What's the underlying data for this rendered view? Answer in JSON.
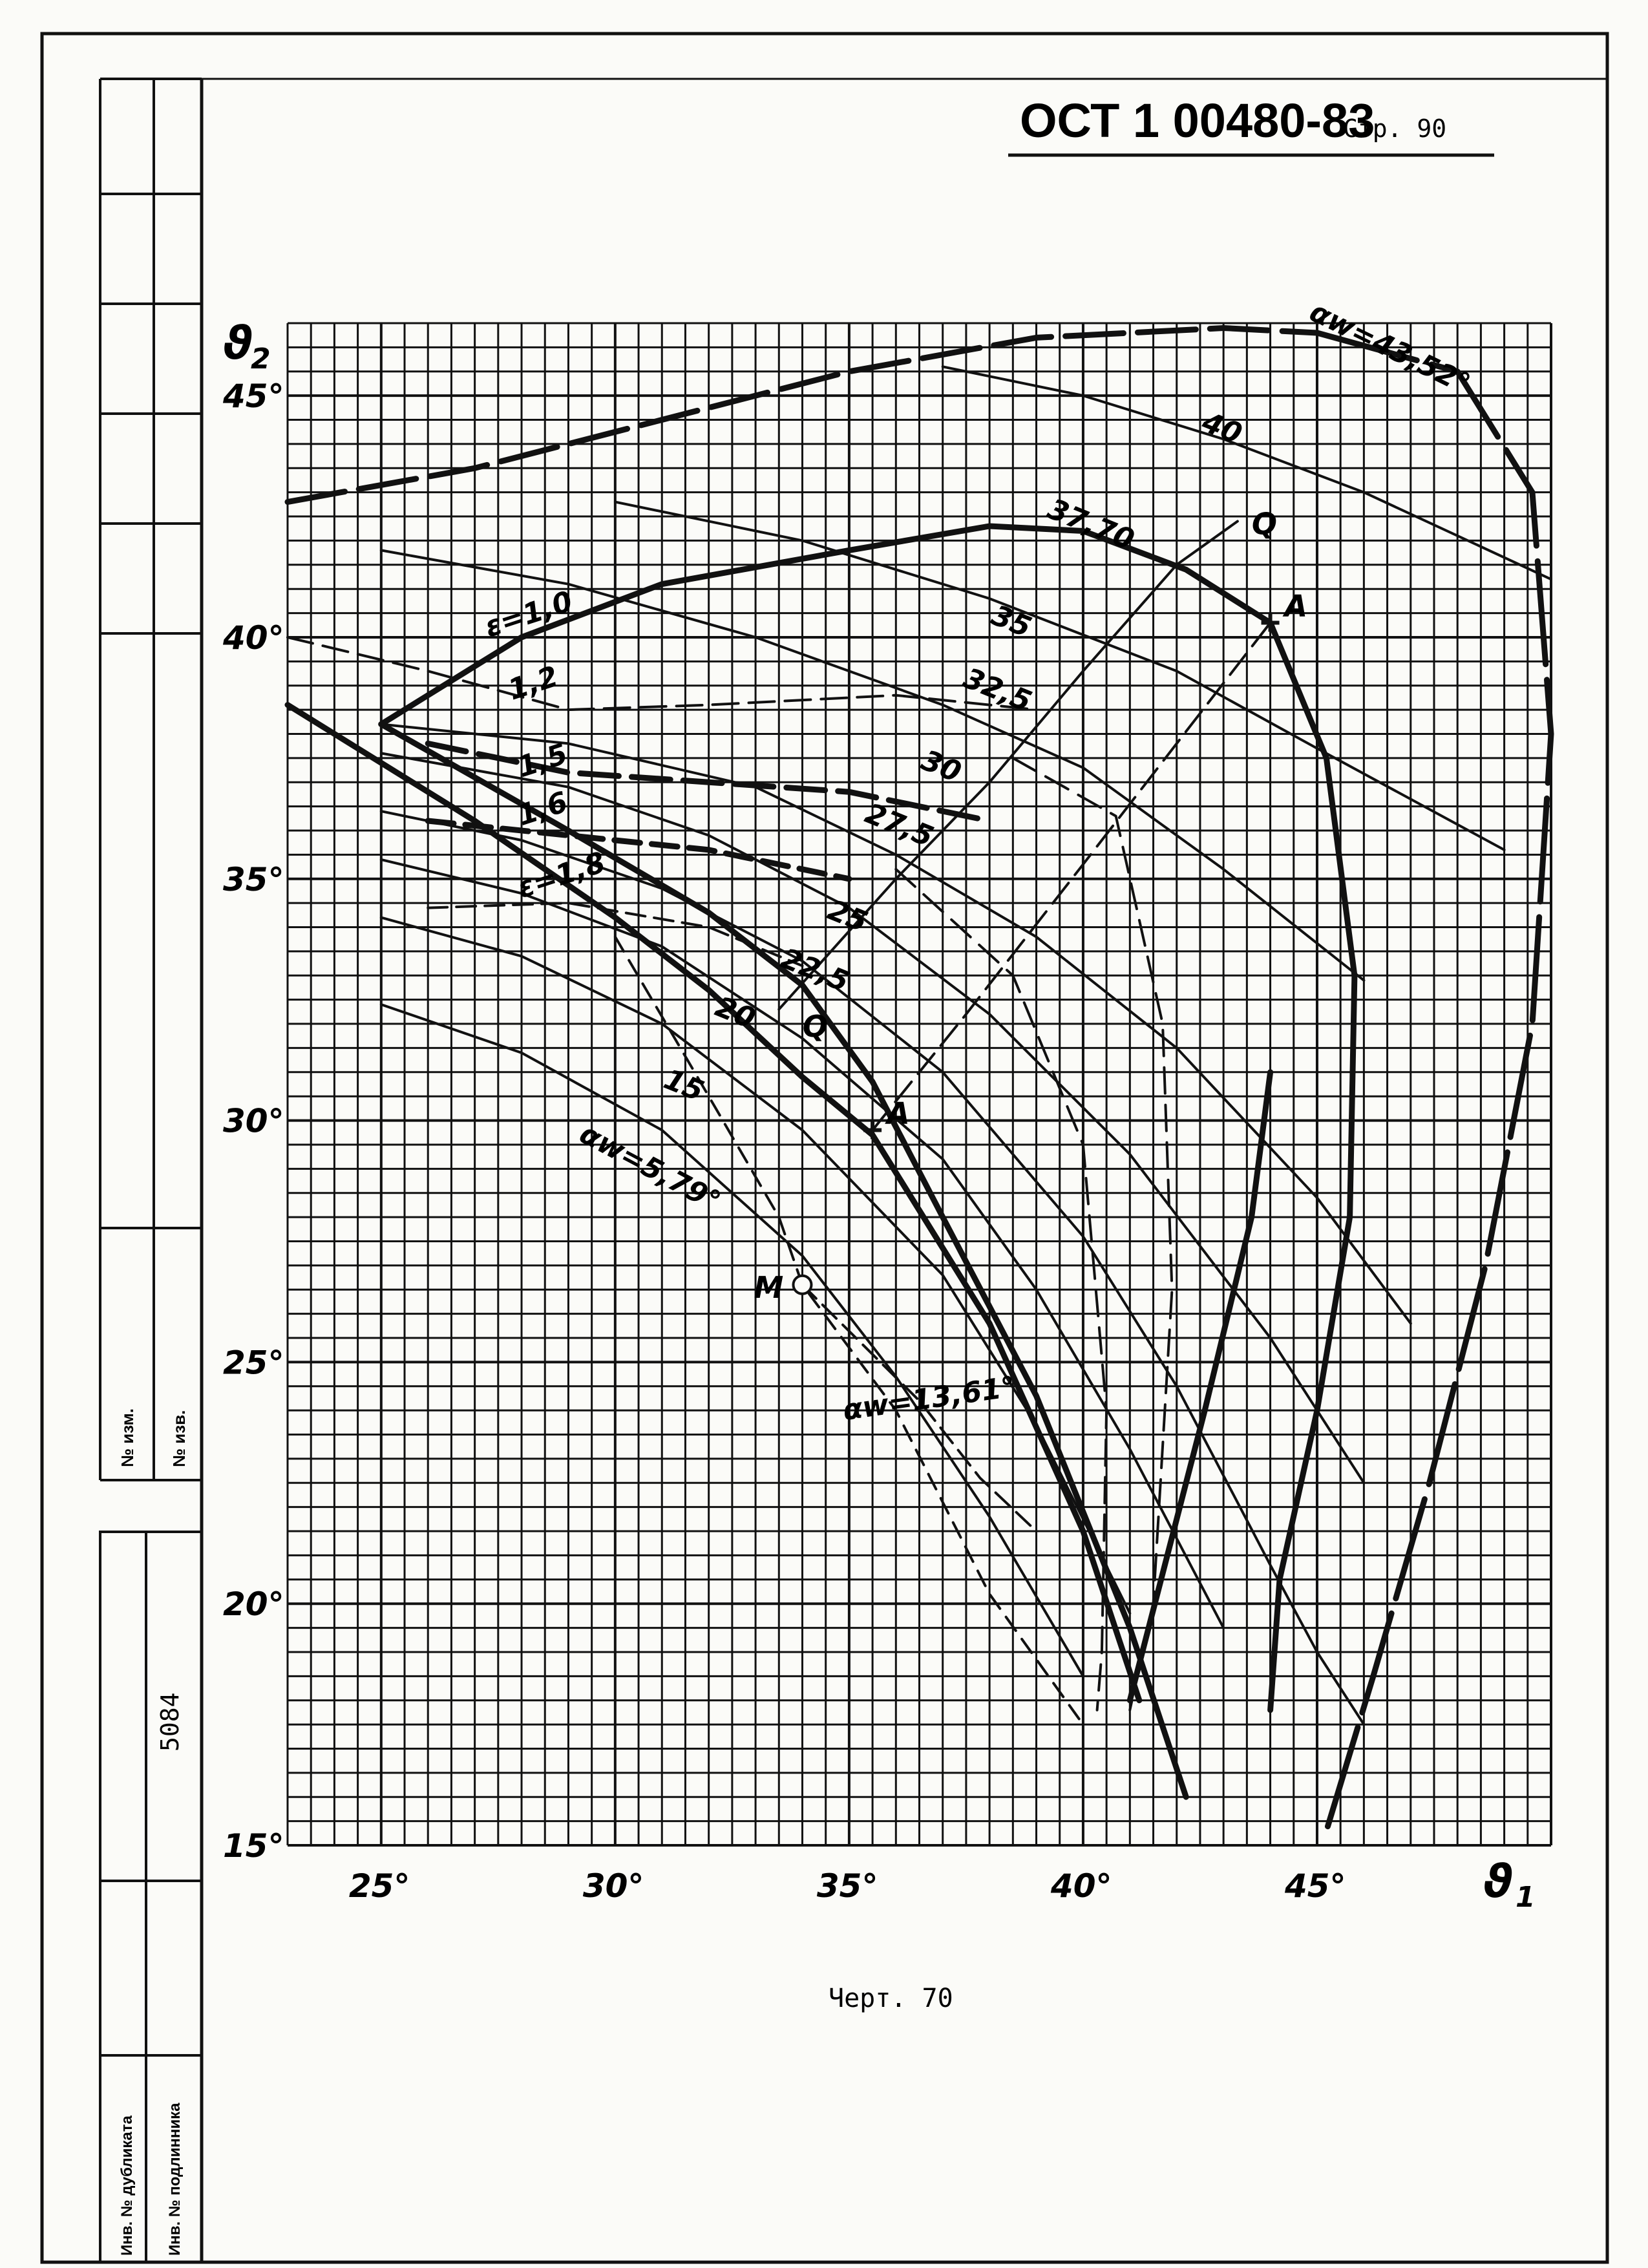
{
  "header": {
    "standard": "ОСТ 1 00480-83",
    "page_label": "Стр. 90"
  },
  "caption": "Черт. 70",
  "stamp": {
    "inv_duplicate": "Инв. № дубликата",
    "inv_original": "Инв. № подлинника",
    "number": "5084",
    "izm_1": "№ изм.",
    "izm_2": "№ изв."
  },
  "chart_data": {
    "type": "diagram",
    "x_axis": {
      "symbol": "ϑ",
      "subscript": "1",
      "range": [
        23,
        50
      ],
      "ticks": [
        25,
        30,
        35,
        40,
        45
      ],
      "tick_labels": [
        "25°",
        "30°",
        "35°",
        "40°",
        "45°"
      ]
    },
    "y_axis": {
      "symbol": "ϑ",
      "subscript": "2",
      "range": [
        15,
        46.5
      ],
      "ticks": [
        15,
        20,
        25,
        30,
        35,
        40,
        45
      ],
      "tick_labels": [
        "15°",
        "20°",
        "25°",
        "30°",
        "35°",
        "40°",
        "45°"
      ]
    },
    "grid": true,
    "contour_labels": [
      {
        "text": "40",
        "x": 42.5,
        "y": 44.3
      },
      {
        "text": "37,70",
        "x": 39.2,
        "y": 42.5
      },
      {
        "text": "35",
        "x": 38.0,
        "y": 40.3
      },
      {
        "text": "32,5",
        "x": 37.4,
        "y": 39.0
      },
      {
        "text": "30",
        "x": 36.5,
        "y": 37.3
      },
      {
        "text": "27,5",
        "x": 35.3,
        "y": 36.2
      },
      {
        "text": "25",
        "x": 34.5,
        "y": 34.2
      },
      {
        "text": "22,5",
        "x": 33.5,
        "y": 33.2
      },
      {
        "text": "20",
        "x": 32.1,
        "y": 32.2
      },
      {
        "text": "15",
        "x": 31.0,
        "y": 30.7
      }
    ],
    "epsilon_labels": [
      {
        "text": "ε=1,0",
        "x": 27.3,
        "y": 40.0
      },
      {
        "text": "1,2",
        "x": 27.8,
        "y": 38.7
      },
      {
        "text": "1,5",
        "x": 28.0,
        "y": 37.1
      },
      {
        "text": "1,6",
        "x": 28.0,
        "y": 36.1
      },
      {
        "text": "ε=1,8",
        "x": 28.0,
        "y": 34.6
      }
    ],
    "alpha_labels": [
      {
        "text": "αw=43,52°",
        "x": 44.8,
        "y": 46.6
      },
      {
        "text": "αw=5,79°",
        "x": 29.2,
        "y": 29.6
      },
      {
        "text": "αw=13,61°",
        "x": 34.9,
        "y": 23.8
      }
    ],
    "points": [
      {
        "label": "A",
        "x": 44.0,
        "y": 40.3
      },
      {
        "label": "A",
        "x": 35.5,
        "y": 29.8
      },
      {
        "label": "Q",
        "x": 43.3,
        "y": 42.4
      },
      {
        "label": "Q",
        "x": 33.7,
        "y": 32.0
      },
      {
        "label": "M",
        "x": 34.0,
        "y": 26.6
      }
    ]
  }
}
